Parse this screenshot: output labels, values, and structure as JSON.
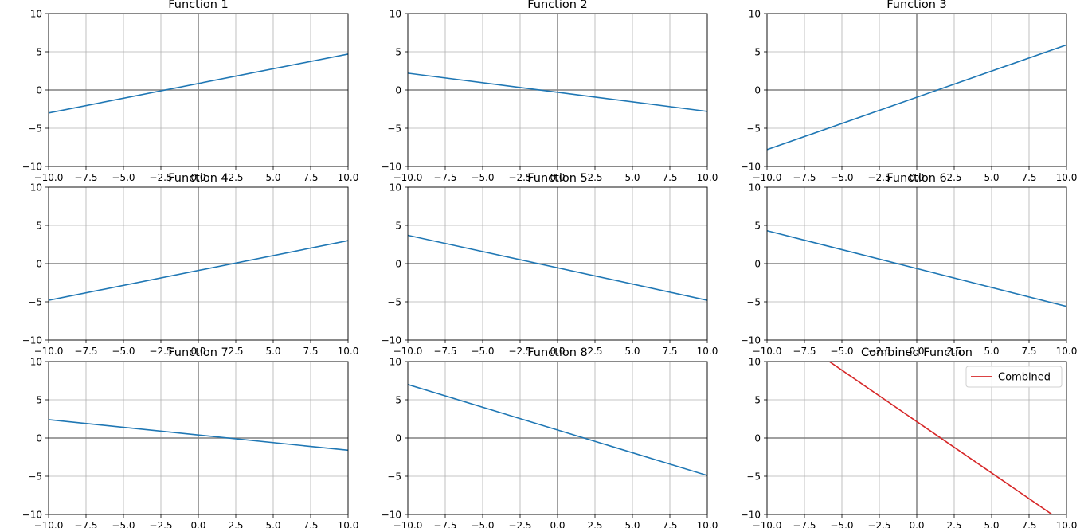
{
  "colors": {
    "line": "#1f77b4",
    "combined": "#d62728",
    "grid": "#b0b0b0",
    "axis_zero": "#808080",
    "spine": "#000000"
  },
  "chart_data": [
    {
      "type": "line",
      "title": "Function 1",
      "xlim": [
        -10,
        10
      ],
      "ylim": [
        -10,
        10
      ],
      "grid": true,
      "xticks": [
        "−10.0",
        "−7.5",
        "−5.0",
        "−2.5",
        "0.0",
        "2.5",
        "5.0",
        "7.5",
        "10.0"
      ],
      "yticks": [
        "−10",
        "−5",
        "0",
        "5",
        "10"
      ],
      "series": [
        {
          "x": [
            -10,
            10
          ],
          "y": [
            -3.0,
            4.7
          ]
        }
      ]
    },
    {
      "type": "line",
      "title": "Function 2",
      "xlim": [
        -10,
        10
      ],
      "ylim": [
        -10,
        10
      ],
      "grid": true,
      "xticks": [
        "−10.0",
        "−7.5",
        "−5.0",
        "−2.5",
        "0.0",
        "2.5",
        "5.0",
        "7.5",
        "10.0"
      ],
      "yticks": [
        "−10",
        "−5",
        "0",
        "5",
        "10"
      ],
      "series": [
        {
          "x": [
            -10,
            10
          ],
          "y": [
            2.2,
            -2.8
          ]
        }
      ]
    },
    {
      "type": "line",
      "title": "Function 3",
      "xlim": [
        -10,
        10
      ],
      "ylim": [
        -10,
        10
      ],
      "grid": true,
      "xticks": [
        "−10.0",
        "−7.5",
        "−5.0",
        "−2.5",
        "0.0",
        "2.5",
        "5.0",
        "7.5",
        "10.0"
      ],
      "yticks": [
        "−10",
        "−5",
        "0",
        "5",
        "10"
      ],
      "series": [
        {
          "x": [
            -10,
            10
          ],
          "y": [
            -7.8,
            5.9
          ]
        }
      ]
    },
    {
      "type": "line",
      "title": "Function 4",
      "xlim": [
        -10,
        10
      ],
      "ylim": [
        -10,
        10
      ],
      "grid": true,
      "xticks": [
        "−10.0",
        "−7.5",
        "−5.0",
        "−2.5",
        "0.0",
        "2.5",
        "5.0",
        "7.5",
        "10.0"
      ],
      "yticks": [
        "−10",
        "−5",
        "0",
        "5",
        "10"
      ],
      "series": [
        {
          "x": [
            -10,
            10
          ],
          "y": [
            -4.8,
            3.0
          ]
        }
      ]
    },
    {
      "type": "line",
      "title": "Function 5",
      "xlim": [
        -10,
        10
      ],
      "ylim": [
        -10,
        10
      ],
      "grid": true,
      "xticks": [
        "−10.0",
        "−7.5",
        "−5.0",
        "−2.5",
        "0.0",
        "2.5",
        "5.0",
        "7.5",
        "10.0"
      ],
      "yticks": [
        "−10",
        "−5",
        "0",
        "5",
        "10"
      ],
      "series": [
        {
          "x": [
            -10,
            10
          ],
          "y": [
            3.7,
            -4.8
          ]
        }
      ]
    },
    {
      "type": "line",
      "title": "Function 6",
      "xlim": [
        -10,
        10
      ],
      "ylim": [
        -10,
        10
      ],
      "grid": true,
      "xticks": [
        "−10.0",
        "−7.5",
        "−5.0",
        "−2.5",
        "0.0",
        "2.5",
        "5.0",
        "7.5",
        "10.0"
      ],
      "yticks": [
        "−10",
        "−5",
        "0",
        "5",
        "10"
      ],
      "series": [
        {
          "x": [
            -10,
            10
          ],
          "y": [
            4.3,
            -5.6
          ]
        }
      ]
    },
    {
      "type": "line",
      "title": "Function 7",
      "xlim": [
        -10,
        10
      ],
      "ylim": [
        -10,
        10
      ],
      "grid": true,
      "xticks": [
        "−10.0",
        "−7.5",
        "−5.0",
        "−2.5",
        "0.0",
        "2.5",
        "5.0",
        "7.5",
        "10.0"
      ],
      "yticks": [
        "−10",
        "−5",
        "0",
        "5",
        "10"
      ],
      "series": [
        {
          "x": [
            -10,
            10
          ],
          "y": [
            2.4,
            -1.6
          ]
        }
      ]
    },
    {
      "type": "line",
      "title": "Function 8",
      "xlim": [
        -10,
        10
      ],
      "ylim": [
        -10,
        10
      ],
      "grid": true,
      "xticks": [
        "−10.0",
        "−7.5",
        "−5.0",
        "−2.5",
        "0.0",
        "2.5",
        "5.0",
        "7.5",
        "10.0"
      ],
      "yticks": [
        "−10",
        "−5",
        "0",
        "5",
        "10"
      ],
      "series": [
        {
          "x": [
            -10,
            10
          ],
          "y": [
            7.0,
            -4.9
          ]
        }
      ]
    },
    {
      "type": "line",
      "title": "Combined Function",
      "xlim": [
        -10,
        10
      ],
      "ylim": [
        -10,
        10
      ],
      "grid": true,
      "xticks": [
        "−10.0",
        "−7.5",
        "−5.0",
        "−2.5",
        "0.0",
        "2.5",
        "5.0",
        "7.5",
        "10.0"
      ],
      "yticks": [
        "−10",
        "−5",
        "0",
        "5",
        "10"
      ],
      "legend": "upper right",
      "series": [
        {
          "name": "Combined",
          "color_key": "combined",
          "x": [
            -10,
            10
          ],
          "y": [
            15.6,
            -11.3
          ]
        }
      ]
    }
  ]
}
